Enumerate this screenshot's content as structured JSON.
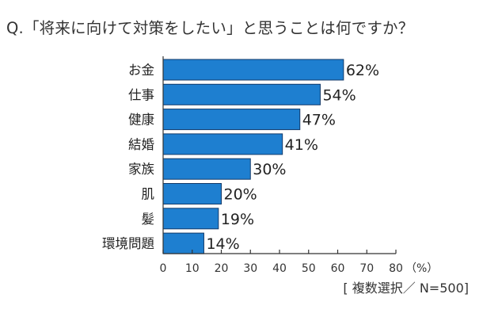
{
  "question": "Q.「将来に向けて対策をしたい」と思うことは何ですか？",
  "note": "[ 複数選択／ N=500]",
  "chart_data": {
    "type": "bar",
    "orientation": "horizontal",
    "title": "Q.「将来に向けて対策をしたい」と思うことは何ですか？",
    "categories": [
      "お金",
      "仕事",
      "健康",
      "結婚",
      "家族",
      "肌",
      "髪",
      "環境問題"
    ],
    "values": [
      62,
      54,
      47,
      41,
      30,
      20,
      19,
      14
    ],
    "value_labels": [
      "62%",
      "54%",
      "47%",
      "41%",
      "30%",
      "20%",
      "19%",
      "14%"
    ],
    "xlim": [
      0,
      80
    ],
    "xticks": [
      "0",
      "10",
      "20",
      "30",
      "40",
      "50",
      "60",
      "70",
      "80"
    ],
    "xunit": "（%）",
    "grid": false,
    "legend": "none",
    "colors": {
      "bar": "#1e7fd0",
      "bar_edge": "#123a6a",
      "axis": "#333333"
    }
  }
}
